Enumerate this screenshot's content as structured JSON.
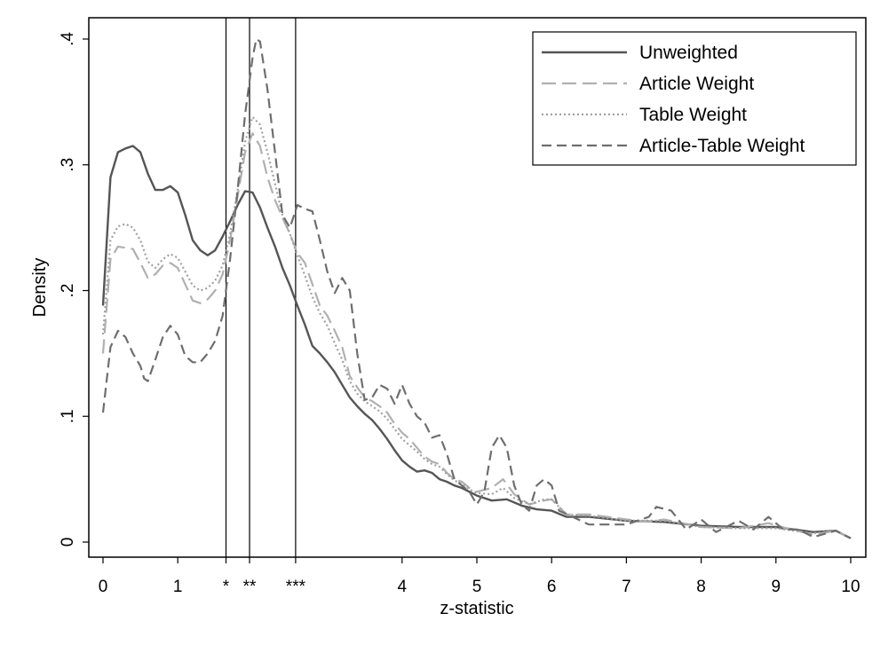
{
  "chart_data": {
    "type": "line",
    "title": "",
    "xlabel": "z-statistic",
    "ylabel": "Density",
    "xlim": [
      0,
      10
    ],
    "ylim": [
      0,
      0.4
    ],
    "x_ticks": [
      {
        "value": 0,
        "label": "0"
      },
      {
        "value": 1,
        "label": "1"
      },
      {
        "value": 1.645,
        "label": "*"
      },
      {
        "value": 1.96,
        "label": "**"
      },
      {
        "value": 2.576,
        "label": "***"
      },
      {
        "value": 4,
        "label": "4"
      },
      {
        "value": 5,
        "label": "5"
      },
      {
        "value": 6,
        "label": "6"
      },
      {
        "value": 7,
        "label": "7"
      },
      {
        "value": 8,
        "label": "8"
      },
      {
        "value": 9,
        "label": "9"
      },
      {
        "value": 10,
        "label": "10"
      }
    ],
    "y_ticks": [
      {
        "value": 0,
        "label": "0"
      },
      {
        "value": 0.1,
        "label": ".1"
      },
      {
        "value": 0.2,
        "label": ".2"
      },
      {
        "value": 0.3,
        "label": ".3"
      },
      {
        "value": 0.4,
        "label": ".4"
      }
    ],
    "reference_lines_x": [
      1.645,
      1.96,
      2.576
    ],
    "grid": false,
    "legend_position": "top-right",
    "series": [
      {
        "name": "Unweighted",
        "color": "#555555",
        "dash": "solid",
        "points": [
          [
            0,
            0.188
          ],
          [
            0.1,
            0.29
          ],
          [
            0.2,
            0.31
          ],
          [
            0.3,
            0.313
          ],
          [
            0.4,
            0.315
          ],
          [
            0.5,
            0.31
          ],
          [
            0.6,
            0.293
          ],
          [
            0.7,
            0.28
          ],
          [
            0.8,
            0.28
          ],
          [
            0.9,
            0.283
          ],
          [
            1.0,
            0.278
          ],
          [
            1.1,
            0.26
          ],
          [
            1.2,
            0.24
          ],
          [
            1.3,
            0.232
          ],
          [
            1.4,
            0.228
          ],
          [
            1.5,
            0.232
          ],
          [
            1.6,
            0.243
          ],
          [
            1.7,
            0.255
          ],
          [
            1.8,
            0.268
          ],
          [
            1.9,
            0.279
          ],
          [
            2.0,
            0.278
          ],
          [
            2.1,
            0.266
          ],
          [
            2.2,
            0.25
          ],
          [
            2.3,
            0.235
          ],
          [
            2.4,
            0.218
          ],
          [
            2.5,
            0.204
          ],
          [
            2.6,
            0.188
          ],
          [
            2.7,
            0.173
          ],
          [
            2.8,
            0.156
          ],
          [
            2.9,
            0.15
          ],
          [
            3.0,
            0.143
          ],
          [
            3.1,
            0.135
          ],
          [
            3.2,
            0.125
          ],
          [
            3.3,
            0.115
          ],
          [
            3.4,
            0.108
          ],
          [
            3.5,
            0.102
          ],
          [
            3.6,
            0.097
          ],
          [
            3.7,
            0.09
          ],
          [
            3.8,
            0.082
          ],
          [
            3.9,
            0.073
          ],
          [
            4.0,
            0.065
          ],
          [
            4.1,
            0.06
          ],
          [
            4.2,
            0.056
          ],
          [
            4.3,
            0.057
          ],
          [
            4.4,
            0.055
          ],
          [
            4.5,
            0.05
          ],
          [
            4.6,
            0.048
          ],
          [
            4.7,
            0.045
          ],
          [
            4.8,
            0.043
          ],
          [
            4.9,
            0.04
          ],
          [
            5.0,
            0.037
          ],
          [
            5.2,
            0.033
          ],
          [
            5.4,
            0.034
          ],
          [
            5.6,
            0.029
          ],
          [
            5.8,
            0.026
          ],
          [
            6.0,
            0.025
          ],
          [
            6.2,
            0.02
          ],
          [
            6.5,
            0.02
          ],
          [
            7.0,
            0.017
          ],
          [
            7.5,
            0.016
          ],
          [
            8.0,
            0.013
          ],
          [
            8.5,
            0.012
          ],
          [
            9.0,
            0.012
          ],
          [
            9.5,
            0.008
          ],
          [
            9.8,
            0.009
          ],
          [
            10.0,
            0.003
          ]
        ]
      },
      {
        "name": "Article Weight",
        "color": "#b0b0b0",
        "dash": "long-dash",
        "points": [
          [
            0,
            0.15
          ],
          [
            0.1,
            0.225
          ],
          [
            0.2,
            0.235
          ],
          [
            0.3,
            0.234
          ],
          [
            0.4,
            0.233
          ],
          [
            0.5,
            0.222
          ],
          [
            0.6,
            0.21
          ],
          [
            0.7,
            0.213
          ],
          [
            0.8,
            0.22
          ],
          [
            0.9,
            0.222
          ],
          [
            1.0,
            0.218
          ],
          [
            1.1,
            0.205
          ],
          [
            1.2,
            0.192
          ],
          [
            1.3,
            0.19
          ],
          [
            1.4,
            0.193
          ],
          [
            1.5,
            0.2
          ],
          [
            1.6,
            0.213
          ],
          [
            1.7,
            0.24
          ],
          [
            1.8,
            0.275
          ],
          [
            1.9,
            0.31
          ],
          [
            2.0,
            0.325
          ],
          [
            2.1,
            0.315
          ],
          [
            2.2,
            0.29
          ],
          [
            2.3,
            0.272
          ],
          [
            2.4,
            0.258
          ],
          [
            2.5,
            0.245
          ],
          [
            2.6,
            0.23
          ],
          [
            2.7,
            0.222
          ],
          [
            2.8,
            0.205
          ],
          [
            2.9,
            0.188
          ],
          [
            3.0,
            0.18
          ],
          [
            3.1,
            0.168
          ],
          [
            3.2,
            0.155
          ],
          [
            3.3,
            0.132
          ],
          [
            3.4,
            0.123
          ],
          [
            3.5,
            0.115
          ],
          [
            3.6,
            0.112
          ],
          [
            3.7,
            0.108
          ],
          [
            3.8,
            0.103
          ],
          [
            3.9,
            0.094
          ],
          [
            4.0,
            0.087
          ],
          [
            4.1,
            0.082
          ],
          [
            4.2,
            0.075
          ],
          [
            4.3,
            0.068
          ],
          [
            4.4,
            0.064
          ],
          [
            4.5,
            0.062
          ],
          [
            4.6,
            0.055
          ],
          [
            4.7,
            0.05
          ],
          [
            4.8,
            0.048
          ],
          [
            4.9,
            0.043
          ],
          [
            5.0,
            0.04
          ],
          [
            5.2,
            0.043
          ],
          [
            5.35,
            0.05
          ],
          [
            5.5,
            0.038
          ],
          [
            5.7,
            0.03
          ],
          [
            5.9,
            0.033
          ],
          [
            6.0,
            0.034
          ],
          [
            6.2,
            0.022
          ],
          [
            6.5,
            0.022
          ],
          [
            7.0,
            0.018
          ],
          [
            7.3,
            0.016
          ],
          [
            7.5,
            0.018
          ],
          [
            8.0,
            0.012
          ],
          [
            8.5,
            0.011
          ],
          [
            8.9,
            0.015
          ],
          [
            9.2,
            0.01
          ],
          [
            9.5,
            0.006
          ],
          [
            9.8,
            0.009
          ],
          [
            10.0,
            0.003
          ]
        ]
      },
      {
        "name": "Table Weight",
        "color": "#a0a0a0",
        "dash": "dotted",
        "points": [
          [
            0,
            0.165
          ],
          [
            0.1,
            0.24
          ],
          [
            0.2,
            0.251
          ],
          [
            0.3,
            0.253
          ],
          [
            0.4,
            0.25
          ],
          [
            0.5,
            0.24
          ],
          [
            0.6,
            0.223
          ],
          [
            0.7,
            0.218
          ],
          [
            0.8,
            0.225
          ],
          [
            0.9,
            0.229
          ],
          [
            1.0,
            0.226
          ],
          [
            1.1,
            0.215
          ],
          [
            1.2,
            0.204
          ],
          [
            1.3,
            0.2
          ],
          [
            1.4,
            0.202
          ],
          [
            1.5,
            0.208
          ],
          [
            1.6,
            0.22
          ],
          [
            1.7,
            0.245
          ],
          [
            1.8,
            0.28
          ],
          [
            1.9,
            0.318
          ],
          [
            2.0,
            0.338
          ],
          [
            2.1,
            0.332
          ],
          [
            2.2,
            0.31
          ],
          [
            2.3,
            0.285
          ],
          [
            2.4,
            0.26
          ],
          [
            2.5,
            0.245
          ],
          [
            2.6,
            0.228
          ],
          [
            2.7,
            0.212
          ],
          [
            2.8,
            0.195
          ],
          [
            2.9,
            0.182
          ],
          [
            3.0,
            0.172
          ],
          [
            3.1,
            0.158
          ],
          [
            3.2,
            0.145
          ],
          [
            3.3,
            0.128
          ],
          [
            3.4,
            0.118
          ],
          [
            3.5,
            0.112
          ],
          [
            3.6,
            0.108
          ],
          [
            3.7,
            0.104
          ],
          [
            3.8,
            0.098
          ],
          [
            3.9,
            0.09
          ],
          [
            4.0,
            0.082
          ],
          [
            4.1,
            0.077
          ],
          [
            4.2,
            0.072
          ],
          [
            4.3,
            0.066
          ],
          [
            4.4,
            0.062
          ],
          [
            4.5,
            0.06
          ],
          [
            4.6,
            0.054
          ],
          [
            4.7,
            0.049
          ],
          [
            4.8,
            0.046
          ],
          [
            4.9,
            0.042
          ],
          [
            5.0,
            0.039
          ],
          [
            5.2,
            0.038
          ],
          [
            5.35,
            0.043
          ],
          [
            5.5,
            0.035
          ],
          [
            5.7,
            0.03
          ],
          [
            5.9,
            0.034
          ],
          [
            6.0,
            0.034
          ],
          [
            6.2,
            0.022
          ],
          [
            6.5,
            0.021
          ],
          [
            7.0,
            0.017
          ],
          [
            7.5,
            0.017
          ],
          [
            8.0,
            0.012
          ],
          [
            8.5,
            0.011
          ],
          [
            9.0,
            0.011
          ],
          [
            9.5,
            0.007
          ],
          [
            9.8,
            0.009
          ],
          [
            10.0,
            0.003
          ]
        ]
      },
      {
        "name": "Article-Table Weight",
        "color": "#6e6e6e",
        "dash": "dash",
        "points": [
          [
            0,
            0.103
          ],
          [
            0.1,
            0.155
          ],
          [
            0.2,
            0.168
          ],
          [
            0.3,
            0.163
          ],
          [
            0.4,
            0.15
          ],
          [
            0.5,
            0.14
          ],
          [
            0.55,
            0.13
          ],
          [
            0.6,
            0.128
          ],
          [
            0.7,
            0.145
          ],
          [
            0.8,
            0.163
          ],
          [
            0.9,
            0.172
          ],
          [
            1.0,
            0.165
          ],
          [
            1.1,
            0.148
          ],
          [
            1.2,
            0.143
          ],
          [
            1.3,
            0.143
          ],
          [
            1.4,
            0.15
          ],
          [
            1.5,
            0.16
          ],
          [
            1.6,
            0.18
          ],
          [
            1.7,
            0.225
          ],
          [
            1.8,
            0.28
          ],
          [
            1.9,
            0.34
          ],
          [
            2.0,
            0.385
          ],
          [
            2.05,
            0.4
          ],
          [
            2.1,
            0.398
          ],
          [
            2.2,
            0.36
          ],
          [
            2.3,
            0.31
          ],
          [
            2.4,
            0.26
          ],
          [
            2.5,
            0.25
          ],
          [
            2.6,
            0.268
          ],
          [
            2.7,
            0.265
          ],
          [
            2.8,
            0.263
          ],
          [
            2.9,
            0.24
          ],
          [
            3.0,
            0.215
          ],
          [
            3.1,
            0.198
          ],
          [
            3.2,
            0.21
          ],
          [
            3.3,
            0.2
          ],
          [
            3.4,
            0.15
          ],
          [
            3.5,
            0.113
          ],
          [
            3.6,
            0.115
          ],
          [
            3.7,
            0.125
          ],
          [
            3.8,
            0.122
          ],
          [
            3.9,
            0.11
          ],
          [
            4.0,
            0.125
          ],
          [
            4.1,
            0.11
          ],
          [
            4.2,
            0.1
          ],
          [
            4.3,
            0.095
          ],
          [
            4.4,
            0.083
          ],
          [
            4.5,
            0.085
          ],
          [
            4.6,
            0.07
          ],
          [
            4.7,
            0.05
          ],
          [
            4.8,
            0.045
          ],
          [
            4.9,
            0.04
          ],
          [
            5.0,
            0.03
          ],
          [
            5.1,
            0.04
          ],
          [
            5.2,
            0.075
          ],
          [
            5.3,
            0.085
          ],
          [
            5.4,
            0.075
          ],
          [
            5.5,
            0.045
          ],
          [
            5.6,
            0.03
          ],
          [
            5.7,
            0.025
          ],
          [
            5.8,
            0.045
          ],
          [
            5.9,
            0.05
          ],
          [
            6.0,
            0.045
          ],
          [
            6.1,
            0.025
          ],
          [
            6.5,
            0.014
          ],
          [
            7.0,
            0.014
          ],
          [
            7.3,
            0.02
          ],
          [
            7.4,
            0.028
          ],
          [
            7.6,
            0.025
          ],
          [
            7.8,
            0.01
          ],
          [
            8.0,
            0.018
          ],
          [
            8.2,
            0.008
          ],
          [
            8.5,
            0.017
          ],
          [
            8.7,
            0.01
          ],
          [
            8.9,
            0.02
          ],
          [
            9.1,
            0.01
          ],
          [
            9.3,
            0.01
          ],
          [
            9.5,
            0.004
          ],
          [
            9.8,
            0.009
          ],
          [
            10.0,
            0.003
          ]
        ]
      }
    ]
  }
}
